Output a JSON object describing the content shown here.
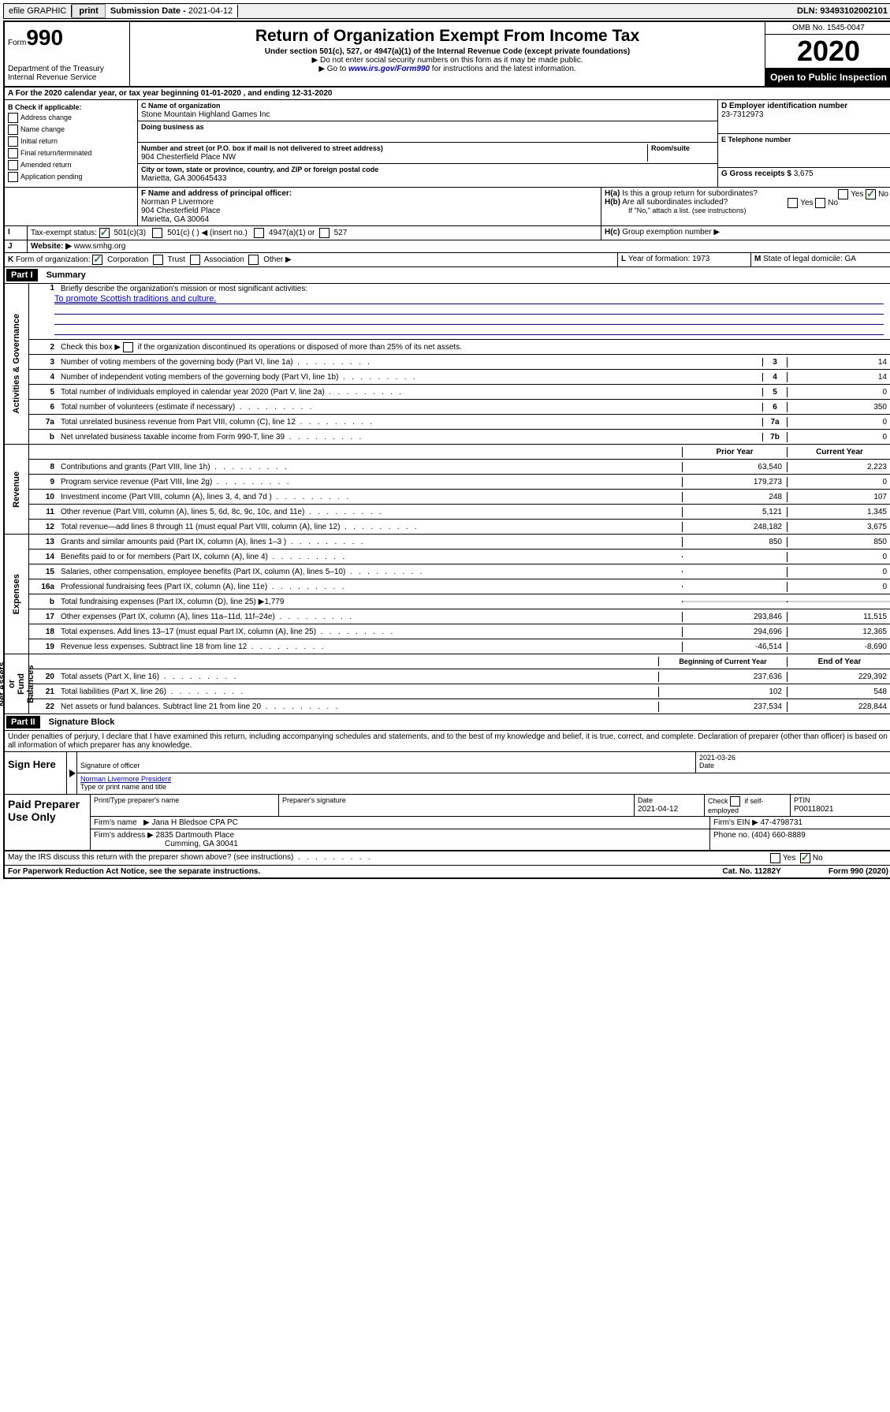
{
  "topbar": {
    "efile": "efile GRAPHIC",
    "print": "print",
    "subDateLbl": "Submission Date - ",
    "subDate": "2021-04-12",
    "dln": "DLN: 93493102002101"
  },
  "header": {
    "formWord": "Form",
    "formNum": "990",
    "dept": "Department of the Treasury\nInternal Revenue Service",
    "title": "Return of Organization Exempt From Income Tax",
    "subtitle": "Under section 501(c), 527, or 4947(a)(1) of the Internal Revenue Code (except private foundations)",
    "note1": "▶ Do not enter social security numbers on this form as it may be made public.",
    "note2a": "▶ Go to ",
    "note2link": "www.irs.gov/Form990",
    "note2b": " for instructions and the latest information.",
    "omb": "OMB No. 1545-0047",
    "year": "2020",
    "open": "Open to Public Inspection"
  },
  "lineA": {
    "pre": "A For the 2020 calendar year, or tax year beginning ",
    "begin": "01-01-2020",
    "mid": " , and ending ",
    "end": "12-31-2020"
  },
  "boxB": {
    "title": "B Check if applicable:",
    "items": [
      "Address change",
      "Name change",
      "Initial return",
      "Final return/terminated",
      "Amended return",
      "Application pending"
    ]
  },
  "boxC": {
    "nameLbl": "C Name of organization",
    "name": "Stone Mountain Highland Games Inc",
    "dba": "Doing business as",
    "addrLbl": "Number and street (or P.O. box if mail is not delivered to street address)",
    "room": "Room/suite",
    "addr": "904 Chesterfield Place NW",
    "cityLbl": "City or town, state or province, country, and ZIP or foreign postal code",
    "city": "Marietta, GA  300645433"
  },
  "boxD": {
    "lbl": "D Employer identification number",
    "val": "23-7312973"
  },
  "boxE": {
    "lbl": "E Telephone number"
  },
  "boxG": {
    "lbl": "G Gross receipts $ ",
    "val": "3,675"
  },
  "boxF": {
    "lbl": "F  Name and address of principal officer:",
    "name": "Norman P Livermore",
    "addr1": "904 Chesterfield Place",
    "addr2": "Marietta, GA  30064"
  },
  "boxH": {
    "a": "H(a)",
    "atxt": "Is this a group return for subordinates?",
    "b": "H(b)",
    "btxt": "Are all subordinates included?",
    "note": "If \"No,\" attach a list. (see instructions)",
    "c": "H(c)",
    "ctxt": "Group exemption number ▶",
    "yes": "Yes",
    "no": "No"
  },
  "lineI": {
    "lbl": "I",
    "txt": "Tax-exempt status:",
    "o1": "501(c)(3)",
    "o2": "501(c) (   ) ◀ (insert no.)",
    "o3": "4947(a)(1) or",
    "o4": "527"
  },
  "lineJ": {
    "lbl": "J",
    "txt": "Website: ▶",
    "val": "www.smhg.org"
  },
  "lineK": {
    "lbl": "K",
    "txt": "Form of organization:",
    "o1": "Corporation",
    "o2": "Trust",
    "o3": "Association",
    "o4": "Other ▶"
  },
  "lineL": {
    "lbl": "L",
    "txt": "Year of formation: ",
    "val": "1973"
  },
  "lineM": {
    "lbl": "M",
    "txt": "State of legal domicile: ",
    "val": "GA"
  },
  "part1": {
    "hdr": "Part I",
    "title": "Summary"
  },
  "sideLabels": {
    "gov": "Activities & Governance",
    "rev": "Revenue",
    "exp": "Expenses",
    "net": "Net Assets or\nFund Balances"
  },
  "s1": {
    "lbl": "1",
    "txt": "Briefly describe the organization's mission or most significant activities:",
    "val": "To promote Scottish traditions and culture."
  },
  "s2": {
    "lbl": "2",
    "txt": "Check this box ▶",
    "post": "if the organization discontinued its operations or disposed of more than 25% of its net assets."
  },
  "govLines": [
    {
      "n": "3",
      "t": "Number of voting members of the governing body (Part VI, line 1a)",
      "b": "3",
      "v": "14"
    },
    {
      "n": "4",
      "t": "Number of independent voting members of the governing body (Part VI, line 1b)",
      "b": "4",
      "v": "14"
    },
    {
      "n": "5",
      "t": "Total number of individuals employed in calendar year 2020 (Part V, line 2a)",
      "b": "5",
      "v": "0"
    },
    {
      "n": "6",
      "t": "Total number of volunteers (estimate if necessary)",
      "b": "6",
      "v": "350"
    },
    {
      "n": "7a",
      "t": "Total unrelated business revenue from Part VIII, column (C), line 12",
      "b": "7a",
      "v": "0"
    },
    {
      "n": "b",
      "t": "Net unrelated business taxable income from Form 990-T, line 39",
      "b": "7b",
      "v": "0"
    }
  ],
  "colHdrs": {
    "prior": "Prior Year",
    "curr": "Current Year",
    "beg": "Beginning of Current Year",
    "end": "End of Year"
  },
  "revLines": [
    {
      "n": "8",
      "t": "Contributions and grants (Part VIII, line 1h)",
      "p": "63,540",
      "c": "2,223"
    },
    {
      "n": "9",
      "t": "Program service revenue (Part VIII, line 2g)",
      "p": "179,273",
      "c": "0"
    },
    {
      "n": "10",
      "t": "Investment income (Part VIII, column (A), lines 3, 4, and 7d )",
      "p": "248",
      "c": "107"
    },
    {
      "n": "11",
      "t": "Other revenue (Part VIII, column (A), lines 5, 6d, 8c, 9c, 10c, and 11e)",
      "p": "5,121",
      "c": "1,345"
    },
    {
      "n": "12",
      "t": "Total revenue—add lines 8 through 11 (must equal Part VIII, column (A), line 12)",
      "p": "248,182",
      "c": "3,675"
    }
  ],
  "expLines": [
    {
      "n": "13",
      "t": "Grants and similar amounts paid (Part IX, column (A), lines 1–3 )",
      "p": "850",
      "c": "850"
    },
    {
      "n": "14",
      "t": "Benefits paid to or for members (Part IX, column (A), line 4)",
      "p": "",
      "c": "0"
    },
    {
      "n": "15",
      "t": "Salaries, other compensation, employee benefits (Part IX, column (A), lines 5–10)",
      "p": "",
      "c": "0"
    },
    {
      "n": "16a",
      "t": "Professional fundraising fees (Part IX, column (A), line 11e)",
      "p": "",
      "c": "0"
    },
    {
      "n": "b",
      "t": "Total fundraising expenses (Part IX, column (D), line 25) ▶1,779",
      "p": "grey",
      "c": "grey"
    },
    {
      "n": "17",
      "t": "Other expenses (Part IX, column (A), lines 11a–11d, 11f–24e)",
      "p": "293,846",
      "c": "11,515"
    },
    {
      "n": "18",
      "t": "Total expenses. Add lines 13–17 (must equal Part IX, column (A), line 25)",
      "p": "294,696",
      "c": "12,365"
    },
    {
      "n": "19",
      "t": "Revenue less expenses. Subtract line 18 from line 12",
      "p": "-46,514",
      "c": "-8,690"
    }
  ],
  "netLines": [
    {
      "n": "20",
      "t": "Total assets (Part X, line 16)",
      "p": "237,636",
      "c": "229,392"
    },
    {
      "n": "21",
      "t": "Total liabilities (Part X, line 26)",
      "p": "102",
      "c": "548"
    },
    {
      "n": "22",
      "t": "Net assets or fund balances. Subtract line 21 from line 20",
      "p": "237,534",
      "c": "228,844"
    }
  ],
  "part2": {
    "hdr": "Part II",
    "title": "Signature Block",
    "decl": "Under penalties of perjury, I declare that I have examined this return, including accompanying schedules and statements, and to the best of my knowledge and belief, it is true, correct, and complete. Declaration of preparer (other than officer) is based on all information of which preparer has any knowledge."
  },
  "sign": {
    "here": "Sign Here",
    "sigLbl": "Signature of officer",
    "date": "2021-03-26",
    "dateLbl": "Date",
    "name": "Norman Livermore  President",
    "nameLbl": "Type or print name and title"
  },
  "prep": {
    "title": "Paid Preparer Use Only",
    "h1": "Print/Type preparer's name",
    "h2": "Preparer's signature",
    "h3": "Date",
    "h4": "Check",
    "h4b": "if self-employed",
    "h5": "PTIN",
    "date": "2021-04-12",
    "ptin": "P00118021",
    "firmLbl": "Firm's name",
    "firm": "Jana H Bledsoe CPA PC",
    "einLbl": "Firm's EIN ▶",
    "ein": "47-4798731",
    "addrLbl": "Firm's address ▶",
    "addr1": "2835 Dartmouth Place",
    "addr2": "Cumming, GA  30041",
    "phLbl": "Phone no.",
    "ph": "(404) 660-8889"
  },
  "discuss": {
    "txt": "May the IRS discuss this return with the preparer shown above? (see instructions)",
    "yes": "Yes",
    "no": "No"
  },
  "footer": {
    "pra": "For Paperwork Reduction Act Notice, see the separate instructions.",
    "cat": "Cat. No. 11282Y",
    "form": "Form 990 (2020)"
  }
}
